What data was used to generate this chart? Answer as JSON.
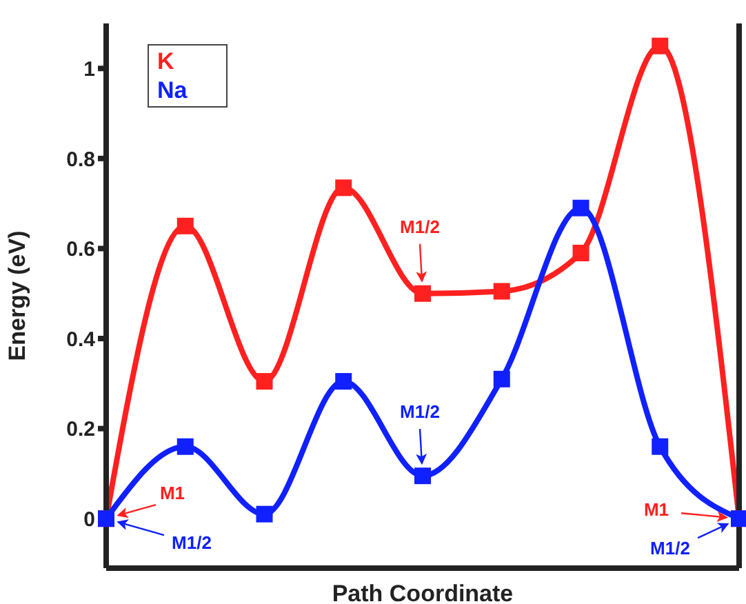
{
  "chart_data": {
    "type": "line",
    "xlabel": "Path Coordinate",
    "ylabel": "Energy (eV)",
    "categories": [
      null,
      null,
      null,
      null,
      null,
      null,
      null,
      null,
      null
    ],
    "series": [
      {
        "name": "K",
        "color": "#ff2020",
        "values": [
          0,
          0.65,
          0.305,
          0.735,
          0.5,
          0.505,
          0.59,
          1.05,
          0
        ]
      },
      {
        "name": "Na",
        "color": "#1020ff",
        "values": [
          0,
          0.16,
          0.01,
          0.305,
          0.095,
          0.31,
          0.69,
          0.16,
          0
        ]
      }
    ],
    "ylim": [
      -0.11,
      1.1
    ],
    "yticks": [
      0,
      0.2,
      0.4,
      0.6,
      0.8,
      1
    ],
    "tick_labels": "y",
    "grid": false,
    "legend": "top left",
    "marker": "square",
    "line_style": "solid",
    "annotations": [
      "M1",
      "M1/2",
      "M1/2",
      "M1/2",
      "M1",
      "M1/2"
    ]
  }
}
